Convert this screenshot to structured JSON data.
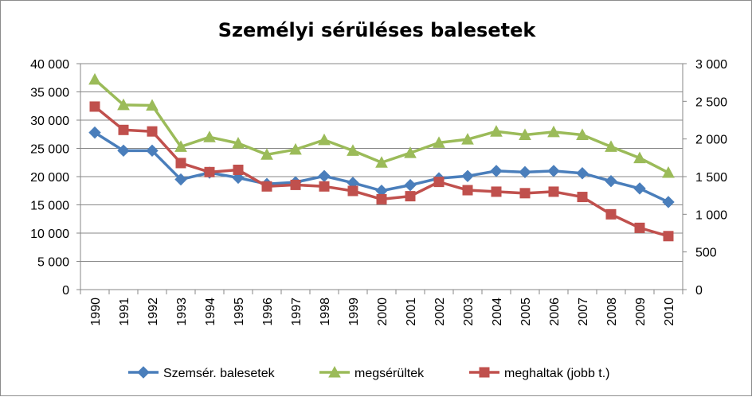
{
  "chart_data": {
    "type": "line",
    "title": "Személyi sérüléses balesetek",
    "categories": [
      "1990",
      "1991",
      "1992",
      "1993",
      "1994",
      "1995",
      "1996",
      "1997",
      "1998",
      "1999",
      "2000",
      "2001",
      "2002",
      "2003",
      "2004",
      "2005",
      "2006",
      "2007",
      "2008",
      "2009",
      "2010"
    ],
    "left_axis": {
      "ylim": [
        0,
        40000
      ],
      "ticks": [
        "0",
        "5 000",
        "10 000",
        "15 000",
        "20 000",
        "25 000",
        "30 000",
        "35 000",
        "40 000"
      ]
    },
    "right_axis": {
      "ylim": [
        0,
        3000
      ],
      "ticks": [
        "0",
        "500",
        "1 000",
        "1 500",
        "2 000",
        "2 500",
        "3 000"
      ]
    },
    "series": [
      {
        "name": "Szemsér. balesetek",
        "axis": "left",
        "color": "#4a7ebb",
        "marker": "diamond",
        "values": [
          27800,
          24600,
          24600,
          19500,
          20700,
          19800,
          18700,
          19000,
          20100,
          18900,
          17500,
          18500,
          19700,
          20100,
          21000,
          20800,
          21000,
          20600,
          19200,
          17900,
          15500
        ]
      },
      {
        "name": "megsérültek",
        "axis": "left",
        "color": "#9bbb59",
        "marker": "triangle",
        "values": [
          37200,
          32700,
          32600,
          25300,
          27000,
          25900,
          23900,
          24800,
          26500,
          24600,
          22500,
          24200,
          26000,
          26600,
          28000,
          27400,
          27900,
          27400,
          25300,
          23300,
          20700
        ]
      },
      {
        "name": "meghaltak (jobb t.)",
        "axis": "right",
        "color": "#c0504d",
        "marker": "square",
        "values": [
          2430,
          2120,
          2100,
          1680,
          1560,
          1590,
          1370,
          1390,
          1370,
          1310,
          1200,
          1240,
          1430,
          1320,
          1300,
          1280,
          1300,
          1230,
          1000,
          820,
          710
        ]
      }
    ],
    "grid": {
      "horizontal": true,
      "vertical": false
    },
    "legend_position": "bottom"
  }
}
